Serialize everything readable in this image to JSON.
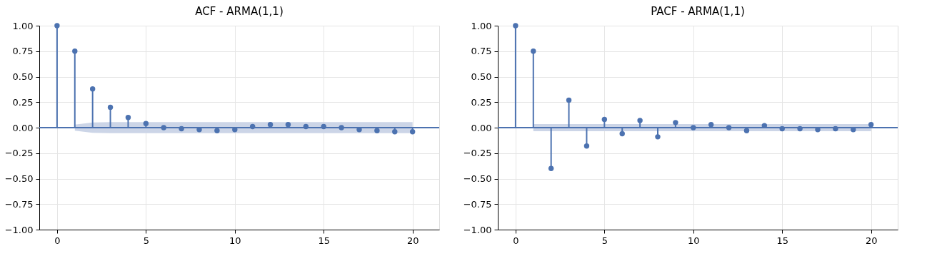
{
  "chart_data": [
    {
      "type": "lollipop",
      "title": "ACF  - ARMA(1,1)",
      "x": [
        0,
        1,
        2,
        3,
        4,
        5,
        6,
        7,
        8,
        9,
        10,
        11,
        12,
        13,
        14,
        15,
        16,
        17,
        18,
        19,
        20
      ],
      "series": [
        {
          "color": "#4c72b0",
          "values": [
            1.0,
            0.75,
            0.38,
            0.2,
            0.1,
            0.04,
            0.0,
            -0.01,
            -0.02,
            -0.03,
            -0.02,
            0.01,
            0.03,
            0.03,
            0.01,
            0.01,
            0.0,
            -0.02,
            -0.03,
            -0.04,
            -0.04
          ],
          "lower": [
            null,
            -0.03,
            -0.05,
            -0.055,
            -0.055,
            -0.055,
            -0.055,
            -0.055,
            -0.055,
            -0.055,
            -0.055,
            -0.055,
            -0.055,
            -0.055,
            -0.055,
            -0.055,
            -0.055,
            -0.055,
            -0.055,
            -0.055,
            -0.055
          ],
          "upper": [
            null,
            0.03,
            0.05,
            0.055,
            0.055,
            0.055,
            0.055,
            0.055,
            0.055,
            0.055,
            0.055,
            0.055,
            0.055,
            0.055,
            0.055,
            0.055,
            0.055,
            0.055,
            0.055,
            0.055,
            0.055
          ]
        }
      ],
      "xlim": [
        -1,
        21.5
      ],
      "xticks": [
        0,
        5,
        10,
        15,
        20
      ],
      "ylim": [
        -1,
        1
      ],
      "yticks": [
        {
          "value": -1,
          "label": "−1.00"
        },
        {
          "value": -0.75,
          "label": "−0.75"
        },
        {
          "value": -0.5,
          "label": "−0.50"
        },
        {
          "value": -0.25,
          "label": "−0.25"
        },
        {
          "value": 0,
          "label": "0.00"
        },
        {
          "value": 0.25,
          "label": "0.25"
        },
        {
          "value": 0.5,
          "label": "0.50"
        },
        {
          "value": 0.75,
          "label": "0.75"
        },
        {
          "value": 1,
          "label": "1.00"
        }
      ],
      "ref_lines": [
        {
          "axis": "y",
          "value": 0,
          "color": "#4c72b0"
        }
      ],
      "grid": true,
      "marker": "circle"
    },
    {
      "type": "lollipop",
      "title": "PACF - ARMA(1,1)",
      "x": [
        0,
        1,
        2,
        3,
        4,
        5,
        6,
        7,
        8,
        9,
        10,
        11,
        12,
        13,
        14,
        15,
        16,
        17,
        18,
        19,
        20
      ],
      "series": [
        {
          "color": "#4c72b0",
          "values": [
            1.0,
            0.75,
            -0.4,
            0.27,
            -0.18,
            0.08,
            -0.06,
            0.07,
            -0.09,
            0.05,
            0.0,
            0.03,
            0.0,
            -0.03,
            0.02,
            -0.01,
            -0.01,
            -0.02,
            -0.01,
            -0.02,
            0.03
          ],
          "lower": [
            null,
            -0.035,
            -0.035,
            -0.035,
            -0.035,
            -0.035,
            -0.035,
            -0.035,
            -0.035,
            -0.035,
            -0.035,
            -0.035,
            -0.035,
            -0.035,
            -0.035,
            -0.035,
            -0.035,
            -0.035,
            -0.035,
            -0.035,
            -0.035
          ],
          "upper": [
            null,
            0.035,
            0.035,
            0.035,
            0.035,
            0.035,
            0.035,
            0.035,
            0.035,
            0.035,
            0.035,
            0.035,
            0.035,
            0.035,
            0.035,
            0.035,
            0.035,
            0.035,
            0.035,
            0.035,
            0.035
          ]
        }
      ],
      "xlim": [
        -1,
        21.5
      ],
      "xticks": [
        0,
        5,
        10,
        15,
        20
      ],
      "ylim": [
        -1,
        1
      ],
      "yticks": [
        {
          "value": -1,
          "label": "−1.00"
        },
        {
          "value": -0.75,
          "label": "−0.75"
        },
        {
          "value": -0.5,
          "label": "−0.50"
        },
        {
          "value": -0.25,
          "label": "−0.25"
        },
        {
          "value": 0,
          "label": "0.00"
        },
        {
          "value": 0.25,
          "label": "0.25"
        },
        {
          "value": 0.5,
          "label": "0.50"
        },
        {
          "value": 0.75,
          "label": "0.75"
        },
        {
          "value": 1,
          "label": "1.00"
        }
      ],
      "ref_lines": [
        {
          "axis": "y",
          "value": 0,
          "color": "#4c72b0"
        }
      ],
      "grid": true,
      "marker": "circle"
    }
  ]
}
